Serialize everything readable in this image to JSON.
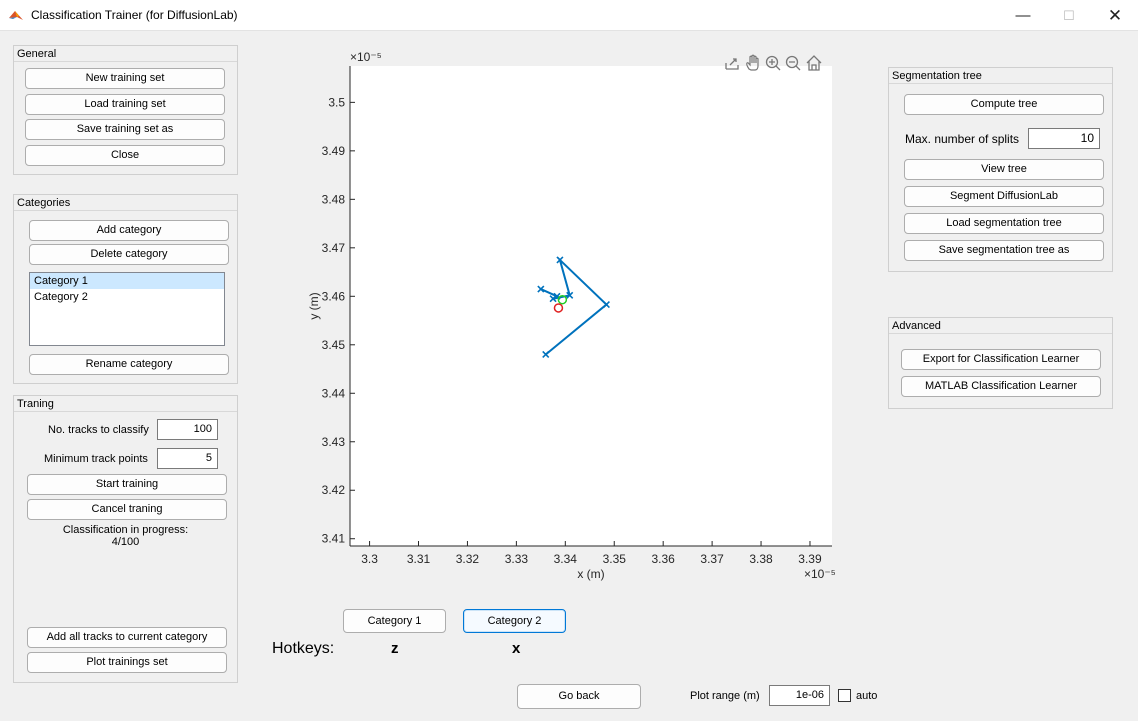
{
  "window": {
    "title": "Classification Trainer (for DiffusionLab)",
    "minimize": "—",
    "maximize": "☐",
    "close": "✕"
  },
  "general": {
    "title": "General",
    "new_set": "New training set",
    "load_set": "Load training set",
    "save_set": "Save training set as",
    "close": "Close"
  },
  "categories": {
    "title": "Categories",
    "add": "Add category",
    "delete": "Delete category",
    "items": [
      "Category 1",
      "Category 2"
    ],
    "selected_index": 0,
    "rename": "Rename category"
  },
  "training": {
    "title": "Traning",
    "tracks_label": "No. tracks to classify",
    "tracks_value": "100",
    "min_points_label": "Minimum track points",
    "min_points_value": "5",
    "start": "Start training",
    "cancel": "Cancel traning",
    "progress_line1": "Classification in progress:",
    "progress_line2": "4/100",
    "add_all": "Add all tracks to current category",
    "plot_set": "Plot trainings set"
  },
  "chart_data": {
    "type": "line",
    "xlabel": "x (m)",
    "ylabel": "y (m)",
    "x_exponent": "×10⁻⁵",
    "y_exponent": "×10⁻⁵",
    "xlim": [
      3.296,
      3.3945
    ],
    "ylim": [
      3.4085,
      3.5075
    ],
    "xticks": [
      "3.3",
      "3.31",
      "3.32",
      "3.33",
      "3.34",
      "3.35",
      "3.36",
      "3.37",
      "3.38",
      "3.39"
    ],
    "yticks": [
      "3.41",
      "3.42",
      "3.43",
      "3.44",
      "3.45",
      "3.46",
      "3.47",
      "3.48",
      "3.49",
      "3.5"
    ],
    "series": [
      {
        "color": "#0072bd",
        "marker": "x",
        "x": [
          3.336,
          3.3484,
          3.3389,
          3.3409,
          3.3375,
          3.3383,
          3.335
        ],
        "y": [
          3.448,
          3.4583,
          3.4675,
          3.4602,
          3.4595,
          3.46,
          3.4615
        ]
      }
    ],
    "start_marker": {
      "x": 3.3394,
      "y": 3.4593,
      "color": "#22cc22"
    },
    "end_marker": {
      "x": 3.3386,
      "y": 3.4576,
      "color": "#e02020"
    }
  },
  "plot_toolbar": {
    "icons": [
      "export-icon",
      "pan-icon",
      "zoom-in-icon",
      "zoom-out-icon",
      "home-icon"
    ]
  },
  "category_buttons": {
    "cat1": "Category 1",
    "cat2": "Category 2"
  },
  "hotkeys": {
    "label": "Hotkeys:",
    "key1": "z",
    "key2": "x"
  },
  "bottom": {
    "go_back": "Go back",
    "plot_range_label": "Plot range (m)",
    "plot_range_value": "1e-06",
    "auto_label": "auto"
  },
  "segmentation": {
    "title": "Segmentation tree",
    "compute": "Compute tree",
    "splits_label": "Max. number of splits",
    "splits_value": "10",
    "view": "View tree",
    "segment": "Segment DiffusionLab",
    "load": "Load segmentation tree",
    "save": "Save segmentation tree as"
  },
  "advanced": {
    "title": "Advanced",
    "export": "Export for Classification Learner",
    "matlab": "MATLAB Classification Learner"
  }
}
